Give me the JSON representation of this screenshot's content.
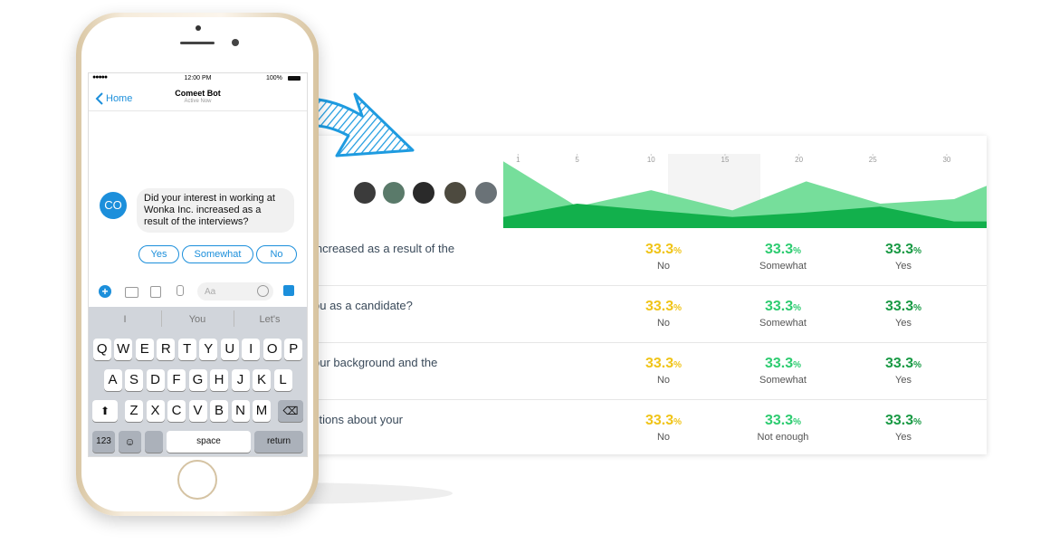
{
  "phone": {
    "status": {
      "time": "12:00 PM",
      "battery": "100%"
    },
    "nav": {
      "back": "Home",
      "title": "Comeet Bot",
      "subtitle": "Active Now"
    },
    "chat": {
      "avatar": "CO",
      "message": "Did your interest in working at Wonka Inc. increased as a result of the interviews?",
      "replies": [
        "Yes",
        "Somewhat",
        "No"
      ]
    },
    "composer": {
      "placeholder": "Aa"
    },
    "keyboard": {
      "suggestions": [
        "I",
        "You",
        "Let's"
      ],
      "rows": [
        [
          "Q",
          "W",
          "E",
          "R",
          "T",
          "Y",
          "U",
          "I",
          "O",
          "P"
        ],
        [
          "A",
          "S",
          "D",
          "F",
          "G",
          "H",
          "J",
          "K",
          "L"
        ],
        [
          "Z",
          "X",
          "C",
          "V",
          "B",
          "N",
          "M"
        ]
      ],
      "numbers": "123",
      "space": "space",
      "return": "return"
    }
  },
  "dashboard": {
    "chart": {
      "type": "area",
      "xlim": [
        0,
        32.7
      ],
      "ylim": [
        0,
        100
      ],
      "xticks": [
        1,
        5,
        10,
        15,
        20,
        25,
        30
      ],
      "x": [
        0,
        5,
        10,
        15.5,
        20.5,
        25.5,
        30.5,
        32.7
      ],
      "series": [
        {
          "color": "#6fdc96",
          "values": [
            90,
            29,
            51,
            24,
            63,
            33,
            39,
            57
          ]
        },
        {
          "color": "#12b04c",
          "values": [
            15,
            33,
            24,
            15,
            21,
            29,
            9,
            9
          ]
        }
      ]
    },
    "rows": [
      {
        "question": "increased as a result of the",
        "results": [
          {
            "value": 33.3,
            "unit": "%",
            "label": "No"
          },
          {
            "value": 33.3,
            "unit": "%",
            "label": "Somewhat"
          },
          {
            "value": 33.3,
            "unit": "%",
            "label": "Yes"
          }
        ]
      },
      {
        "question": "ou as a candidate?",
        "results": [
          {
            "value": 33.3,
            "unit": "%",
            "label": "No"
          },
          {
            "value": 33.3,
            "unit": "%",
            "label": "Somewhat"
          },
          {
            "value": 33.3,
            "unit": "%",
            "label": "Yes"
          }
        ]
      },
      {
        "question": "our background and the",
        "results": [
          {
            "value": 33.3,
            "unit": "%",
            "label": "No"
          },
          {
            "value": 33.3,
            "unit": "%",
            "label": "Somewhat"
          },
          {
            "value": 33.3,
            "unit": "%",
            "label": "Yes"
          }
        ]
      },
      {
        "question": "stions about your",
        "results": [
          {
            "value": 33.3,
            "unit": "%",
            "label": "No"
          },
          {
            "value": 33.3,
            "unit": "%",
            "label": "Not enough"
          },
          {
            "value": 33.3,
            "unit": "%",
            "label": "Yes"
          }
        ]
      }
    ]
  }
}
